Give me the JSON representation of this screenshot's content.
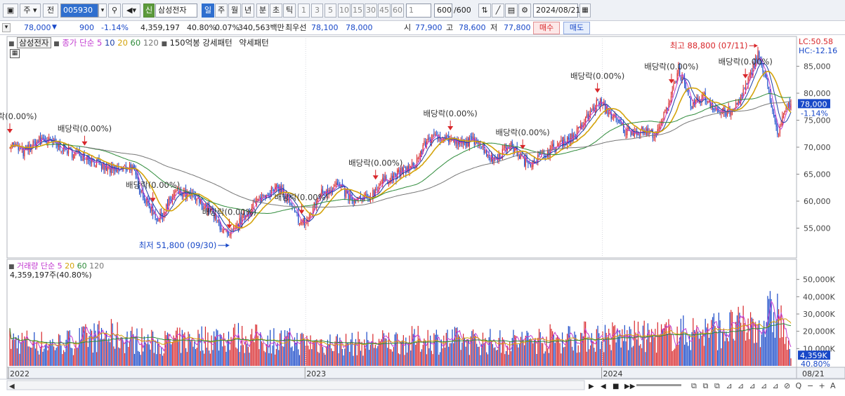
{
  "toolbar": {
    "market": "주",
    "period_select": "전",
    "code": "005930",
    "new_badge": "신",
    "stock_name": "삼성전자",
    "timeframes": [
      "일",
      "주",
      "월",
      "년",
      "분",
      "초",
      "틱"
    ],
    "minute_options": [
      "1",
      "3",
      "5",
      "10",
      "15",
      "30",
      "45",
      "60"
    ],
    "interval_value": "1",
    "count": "600",
    "count_total": "/600",
    "date": "2024/08/21"
  },
  "quote": {
    "price": "78,000",
    "change": "900",
    "change_pct": "-1.14%",
    "volume": "4,359,197",
    "volume_ratio": "40.80%",
    "turnover_ratio": "0.07%",
    "amount": "340,563백만",
    "best_bid_label": "최우선",
    "best_ask": "78,100",
    "best_bid": "78,000",
    "open_label": "시",
    "open": "77,900",
    "high_label": "고",
    "high": "78,600",
    "low_label": "저",
    "low": "77,800",
    "buy": "매수",
    "sell": "매도"
  },
  "legend": {
    "name": "삼성전자",
    "ma_label": "종가 단순",
    "ma_periods": [
      "5",
      "10",
      "20",
      "60",
      "120"
    ],
    "pattern": "150억봉 강세패턴",
    "weak": "약세패턴",
    "lc": "LC:50.58",
    "hc": "HC:-12.16",
    "vol_label": "거래량",
    "vol_ma_label": "단순",
    "vol_ma_periods": [
      "5",
      "20",
      "60",
      "120"
    ],
    "vol_value": "4,359,197주(40.80%)"
  },
  "colors": {
    "up": "#d8262a",
    "down": "#1848c8",
    "ma5": "#c23ad0",
    "ma10": "#1b3fa8",
    "ma20": "#d4a30a",
    "ma60": "#2e8b3a",
    "ma120": "#777777"
  },
  "chart_data": {
    "type": "candlestick",
    "x_tick_labels": [
      "2022",
      "2023",
      "2024",
      "08/21"
    ],
    "price_axis": [
      "85,000",
      "80,000",
      "75,000",
      "70,000",
      "65,000",
      "60,000",
      "55,000"
    ],
    "ylim": [
      50000,
      90000
    ],
    "current_price": "78,000",
    "current_change": "-1.14%",
    "volume_axis": [
      "50,000K",
      "40,000K",
      "30,000K",
      "20,000K",
      "10,000K"
    ],
    "current_volume": "4,359K",
    "current_volume_pct": "40.80%",
    "high_note": "최고 88,800 (07/11)",
    "low_note": "최저 51,800 (09/30)",
    "dividend_label": "배당락(0.00%)",
    "close_path": [
      [
        "2022-01-03",
        70800
      ],
      [
        "2022-01-20",
        69000
      ],
      [
        "2022-02-10",
        71500
      ],
      [
        "2022-03-01",
        70500
      ],
      [
        "2022-03-20",
        69000
      ],
      [
        "2022-04-05",
        68500
      ],
      [
        "2022-04-25",
        66500
      ],
      [
        "2022-05-12",
        65500
      ],
      [
        "2022-06-01",
        66500
      ],
      [
        "2022-06-20",
        59800
      ],
      [
        "2022-07-05",
        56500
      ],
      [
        "2022-07-25",
        61500
      ],
      [
        "2022-08-15",
        61000
      ],
      [
        "2022-09-05",
        58500
      ],
      [
        "2022-09-30",
        53100
      ],
      [
        "2022-10-15",
        56500
      ],
      [
        "2022-10-31",
        59500
      ],
      [
        "2022-11-15",
        61500
      ],
      [
        "2022-12-01",
        62500
      ],
      [
        "2022-12-28",
        55800
      ],
      [
        "2023-01-05",
        56500
      ],
      [
        "2023-01-20",
        61500
      ],
      [
        "2023-02-10",
        63000
      ],
      [
        "2023-03-01",
        60000
      ],
      [
        "2023-03-20",
        60500
      ],
      [
        "2023-04-05",
        63500
      ],
      [
        "2023-04-25",
        65000
      ],
      [
        "2023-05-15",
        66500
      ],
      [
        "2023-06-01",
        71500
      ],
      [
        "2023-06-20",
        72000
      ],
      [
        "2023-07-10",
        70500
      ],
      [
        "2023-08-01",
        71500
      ],
      [
        "2023-08-20",
        67500
      ],
      [
        "2023-09-10",
        70500
      ],
      [
        "2023-10-01",
        67000
      ],
      [
        "2023-10-20",
        68500
      ],
      [
        "2023-11-10",
        70500
      ],
      [
        "2023-12-01",
        72500
      ],
      [
        "2023-12-28",
        78500
      ],
      [
        "2024-01-10",
        76500
      ],
      [
        "2024-01-31",
        73000
      ],
      [
        "2024-02-20",
        73000
      ],
      [
        "2024-03-10",
        72500
      ],
      [
        "2024-03-25",
        79000
      ],
      [
        "2024-04-05",
        84500
      ],
      [
        "2024-04-20",
        77500
      ],
      [
        "2024-05-05",
        79500
      ],
      [
        "2024-05-25",
        76500
      ],
      [
        "2024-06-10",
        76500
      ],
      [
        "2024-06-28",
        81500
      ],
      [
        "2024-07-11",
        87500
      ],
      [
        "2024-07-25",
        80500
      ],
      [
        "2024-08-05",
        71400
      ],
      [
        "2024-08-12",
        76500
      ],
      [
        "2024-08-21",
        78000
      ]
    ],
    "volume_path": [
      [
        "2022-01-03",
        14000
      ],
      [
        "2022-03-01",
        12000
      ],
      [
        "2022-05-01",
        17000
      ],
      [
        "2022-07-01",
        12500
      ],
      [
        "2022-09-30",
        16000
      ],
      [
        "2022-12-28",
        13000
      ],
      [
        "2023-03-01",
        12000
      ],
      [
        "2023-06-01",
        14500
      ],
      [
        "2023-09-01",
        13000
      ],
      [
        "2023-12-01",
        16000
      ],
      [
        "2024-03-01",
        16000
      ],
      [
        "2024-05-01",
        19000
      ],
      [
        "2024-07-11",
        22000
      ],
      [
        "2024-08-05",
        30000
      ],
      [
        "2024-08-21",
        4359
      ]
    ]
  }
}
